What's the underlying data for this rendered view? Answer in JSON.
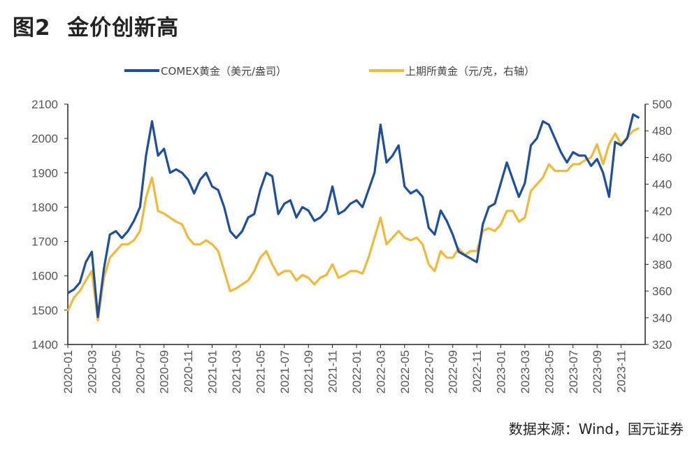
{
  "title": "图2  金价创新高",
  "source": "数据来源：Wind，国元证券",
  "colors": {
    "comex": "#1f4e9c",
    "shfe": "#f0b93a",
    "axis": "#222222"
  },
  "chart_data": {
    "type": "line",
    "title": "金价创新高",
    "legend": [
      "COMEX黄金（美元/盎司）",
      "上期所黄金（元/克，右轴）"
    ],
    "legend_position": "top-center",
    "grid": false,
    "x_ticks": [
      "2020-01",
      "2020-03",
      "2020-05",
      "2020-07",
      "2020-09",
      "2020-11",
      "2021-01",
      "2021-03",
      "2021-05",
      "2021-07",
      "2021-09",
      "2021-11",
      "2022-01",
      "2022-03",
      "2022-05",
      "2022-07",
      "2022-09",
      "2022-11",
      "2023-01",
      "2023-03",
      "2023-05",
      "2023-07",
      "2023-09",
      "2023-11"
    ],
    "x_range_months": [
      0,
      48
    ],
    "y_left": {
      "ticks": [
        1400,
        1500,
        1600,
        1700,
        1800,
        1900,
        2000,
        2100
      ],
      "range": [
        1400,
        2100
      ]
    },
    "y_right": {
      "ticks": [
        320,
        340,
        360,
        380,
        400,
        420,
        440,
        460,
        480,
        500
      ],
      "range": [
        320,
        500
      ]
    },
    "x_note": "values sampled semi-monthly starting 2020-01",
    "series": [
      {
        "name": "COMEX黄金（美元/盎司）",
        "axis": "left",
        "values": [
          1550,
          1560,
          1580,
          1640,
          1670,
          1480,
          1620,
          1720,
          1730,
          1710,
          1730,
          1760,
          1800,
          1950,
          2050,
          1950,
          1970,
          1900,
          1910,
          1900,
          1880,
          1840,
          1880,
          1900,
          1860,
          1850,
          1800,
          1730,
          1710,
          1730,
          1770,
          1780,
          1850,
          1900,
          1890,
          1780,
          1810,
          1820,
          1770,
          1800,
          1790,
          1760,
          1770,
          1790,
          1860,
          1780,
          1790,
          1810,
          1820,
          1800,
          1850,
          1900,
          2040,
          1930,
          1950,
          1980,
          1860,
          1840,
          1850,
          1830,
          1740,
          1720,
          1790,
          1760,
          1720,
          1670,
          1660,
          1650,
          1640,
          1750,
          1800,
          1810,
          1870,
          1930,
          1880,
          1830,
          1870,
          1980,
          2000,
          2050,
          2040,
          2000,
          1960,
          1930,
          1960,
          1950,
          1950,
          1920,
          1940,
          1900,
          1830,
          1990,
          1980,
          2000,
          2070,
          2060
        ]
      },
      {
        "name": "上期所黄金（元/克，右轴）",
        "axis": "right",
        "values": [
          345,
          355,
          360,
          368,
          375,
          338,
          370,
          385,
          390,
          395,
          395,
          398,
          405,
          430,
          445,
          420,
          418,
          415,
          412,
          410,
          400,
          395,
          395,
          398,
          395,
          390,
          375,
          360,
          362,
          365,
          368,
          375,
          385,
          390,
          380,
          372,
          375,
          375,
          368,
          372,
          370,
          365,
          370,
          372,
          380,
          370,
          372,
          375,
          375,
          373,
          385,
          400,
          415,
          395,
          400,
          405,
          400,
          398,
          400,
          395,
          380,
          375,
          390,
          385,
          385,
          392,
          387,
          390,
          390,
          405,
          407,
          405,
          410,
          420,
          420,
          412,
          415,
          435,
          440,
          445,
          455,
          450,
          450,
          450,
          455,
          455,
          458,
          460,
          470,
          455,
          470,
          478,
          470,
          475,
          480,
          482
        ]
      }
    ]
  }
}
